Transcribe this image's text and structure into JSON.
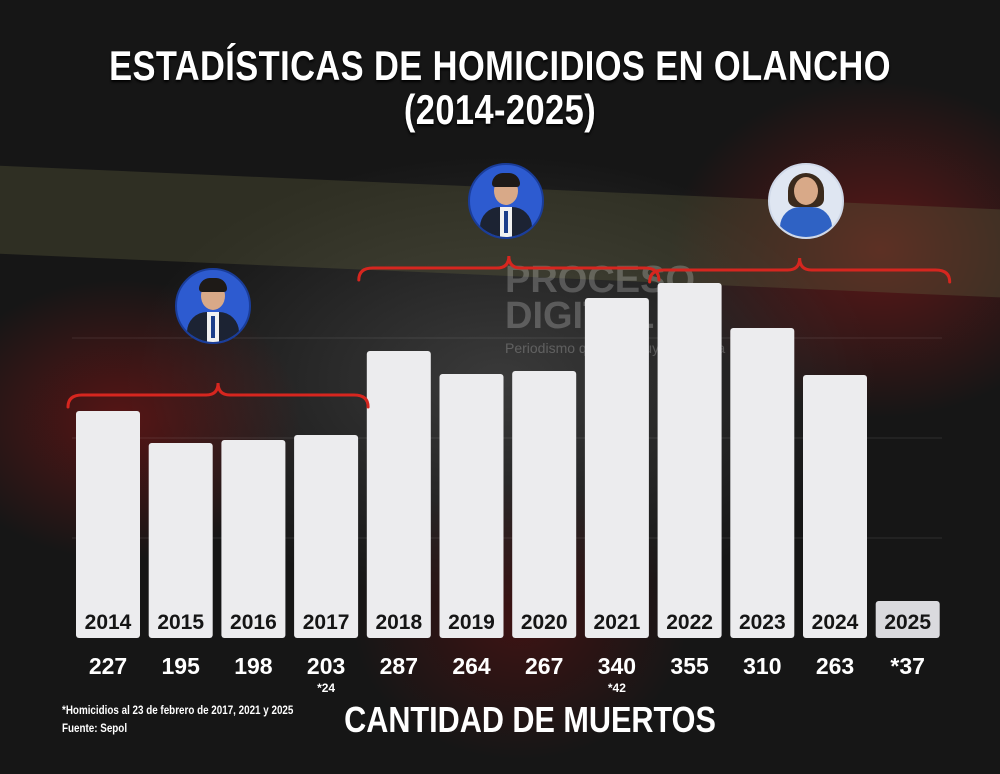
{
  "title_line1": "ESTADÍSTICAS DE HOMICIDIOS EN OLANCHO",
  "title_line2": "(2014-2025)",
  "watermark": {
    "line1": "PROCESO",
    "line2": "DIGITAL",
    "line3": "Periodismo que construye memoria"
  },
  "footnote": "*Homicidios al 23 de febrero de 2017, 2021 y 2025",
  "source": "Fuente: Sepol",
  "colors": {
    "bar": "#ececee",
    "bar_last": "#dadade",
    "bracket": "#d6261f",
    "text": "#ffffff"
  },
  "icons": [
    "person-avatar-icon",
    "person-avatar-icon",
    "person-avatar-icon"
  ],
  "chart_data": {
    "type": "bar",
    "title": "ESTADÍSTICAS DE HOMICIDIOS EN OLANCHO (2014-2025)",
    "xlabel": "CANTIDAD DE MUERTOS",
    "ylabel": "",
    "categories": [
      "2014",
      "2015",
      "2016",
      "2017",
      "2018",
      "2019",
      "2020",
      "2021",
      "2022",
      "2023",
      "2024",
      "2025"
    ],
    "values": [
      227,
      195,
      198,
      203,
      287,
      264,
      267,
      340,
      355,
      310,
      263,
      37
    ],
    "value_labels": [
      "227",
      "195",
      "198",
      "203",
      "287",
      "264",
      "267",
      "340",
      "355",
      "310",
      "263",
      "*37"
    ],
    "sub_labels": [
      "",
      "",
      "",
      "*24",
      "",
      "",
      "",
      "*42",
      "",
      "",
      "",
      ""
    ],
    "ylim": [
      0,
      380
    ],
    "grid": true,
    "legend": "none",
    "groups": [
      {
        "start": 0,
        "end": 3
      },
      {
        "start": 4,
        "end": 7
      },
      {
        "start": 8,
        "end": 11
      }
    ]
  }
}
